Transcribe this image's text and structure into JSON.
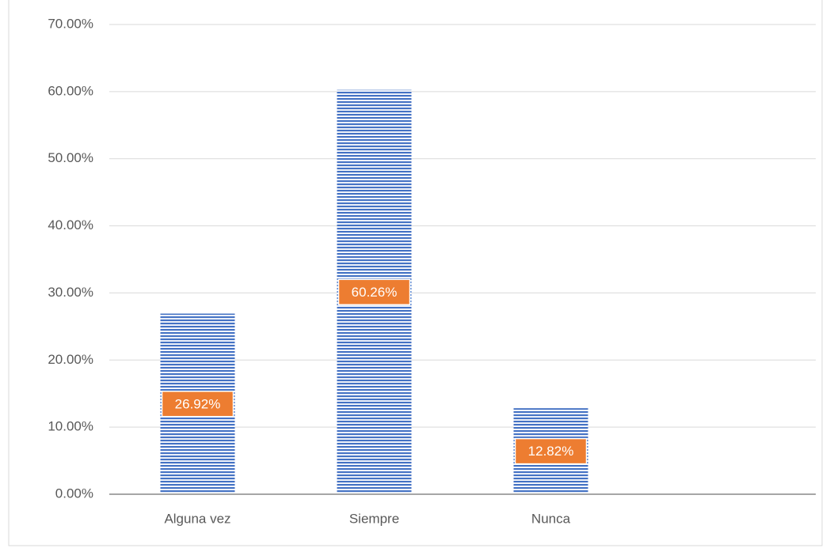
{
  "chart_data": {
    "type": "bar",
    "categories": [
      "Alguna vez",
      "Siempre",
      "Nunca",
      null
    ],
    "values": [
      26.92,
      60.26,
      12.82,
      null
    ],
    "value_labels": [
      "26.92%",
      "60.26%",
      "12.82%",
      null
    ],
    "color": "#4472c4",
    "label_color": "#ed7d31",
    "ylim": [
      0,
      70
    ],
    "yticks": [
      {
        "value": 0,
        "label": "0.00%"
      },
      {
        "value": 10,
        "label": "10.00%"
      },
      {
        "value": 20,
        "label": "20.00%"
      },
      {
        "value": 30,
        "label": "30.00%"
      },
      {
        "value": 40,
        "label": "40.00%"
      },
      {
        "value": 50,
        "label": "50.00%"
      },
      {
        "value": 60,
        "label": "60.00%"
      },
      {
        "value": 70,
        "label": "70.00%"
      }
    ],
    "grid": true
  }
}
